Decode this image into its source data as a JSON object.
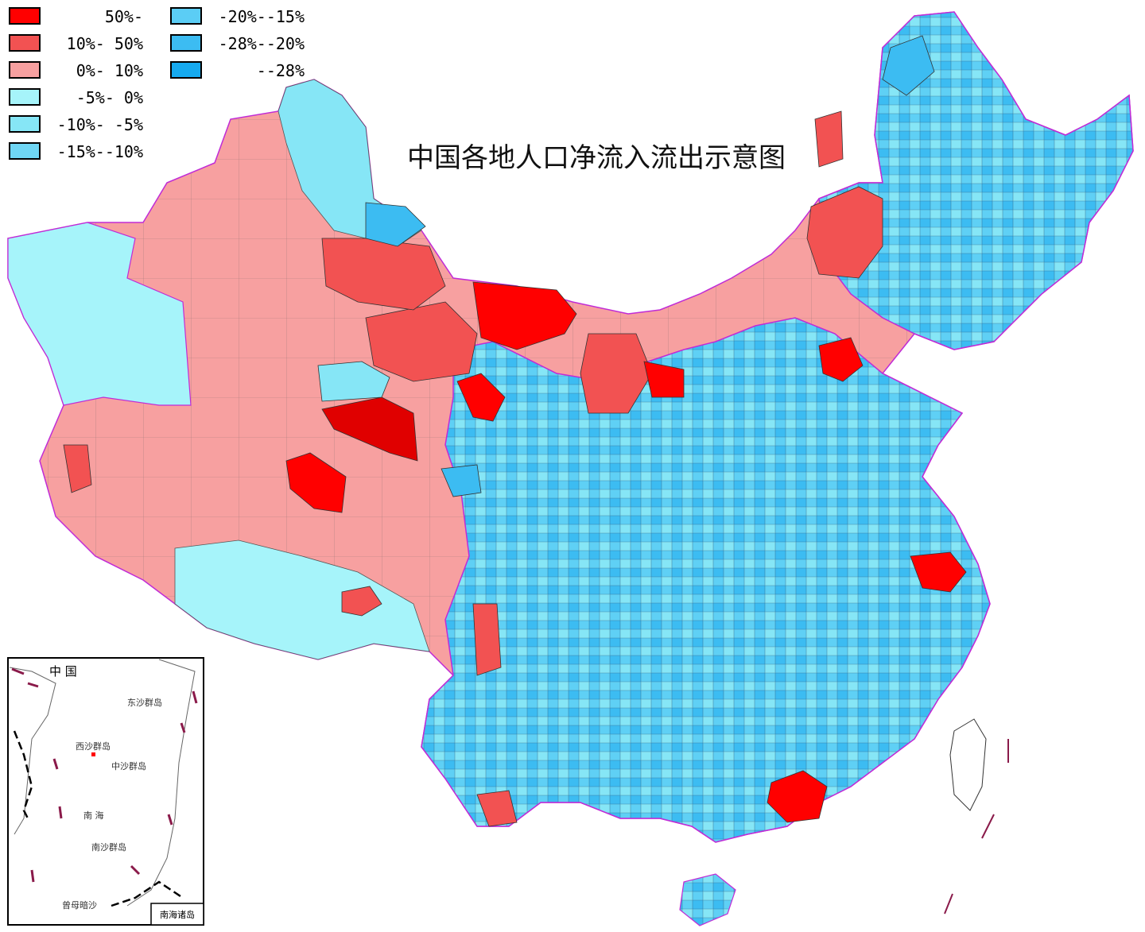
{
  "title": "中国各地人口净流入流出示意图",
  "legend": [
    {
      "label": "50%-",
      "color": "#ff0000"
    },
    {
      "label": "10%- 50%",
      "color": "#f25252"
    },
    {
      "label": "0%- 10%",
      "color": "#f7a0a0"
    },
    {
      "label": "-5%- 0%",
      "color": "#a6f4fa"
    },
    {
      "label": "-10%- -5%",
      "color": "#86e6f6"
    },
    {
      "label": "-15%--10%",
      "color": "#6fd6f4"
    },
    {
      "label": "-20%--15%",
      "color": "#5bcdf5"
    },
    {
      "label": "-28%--20%",
      "color": "#3cbcf2"
    },
    {
      "label": "--28%",
      "color": "#16aaf0"
    }
  ],
  "inset": {
    "country_label": "中 国",
    "places": [
      "东沙群岛",
      "西沙群岛",
      "中沙群岛",
      "南 海",
      "南沙群岛",
      "曾母暗沙"
    ],
    "frame_label": "南海诸岛"
  },
  "colors": {
    "province_border": "#c02bd6",
    "county_border": "#333333"
  }
}
